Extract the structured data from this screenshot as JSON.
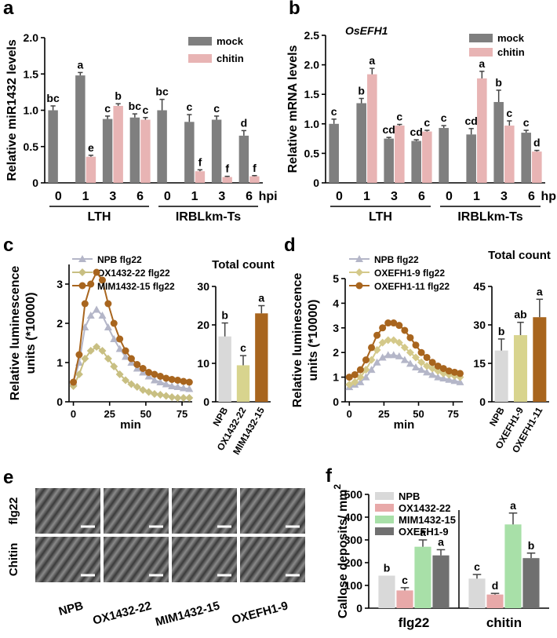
{
  "chart_data": [
    {
      "type": "bar",
      "letter": "a",
      "ylabel": "Relative miR1432 levels",
      "categories": [
        "0",
        "1",
        "3",
        "6",
        "0",
        "1",
        "3",
        "6"
      ],
      "groups": [
        "LTH",
        "IRBLkm-Ts"
      ],
      "xlabel": "hpi",
      "series": [
        {
          "name": "mock",
          "color": "#7f7f7f",
          "values": [
            1.0,
            1.48,
            0.88,
            0.9,
            1.0,
            0.84,
            0.87,
            0.65
          ],
          "errors": [
            0.06,
            0.04,
            0.04,
            0.05,
            0.15,
            0.1,
            0.05,
            0.07
          ],
          "labels": [
            "bc",
            "a",
            "c",
            "bc",
            "bc",
            "c",
            "c",
            "d"
          ]
        },
        {
          "name": "chitin",
          "color": "#e8b4b4",
          "values": [
            null,
            0.36,
            1.06,
            0.87,
            null,
            0.16,
            0.08,
            0.09
          ],
          "errors": [
            null,
            0.02,
            0.03,
            0.03,
            null,
            0.02,
            0.01,
            0.01
          ],
          "labels": [
            null,
            "e",
            "b",
            "c",
            null,
            "f",
            "f",
            "f"
          ]
        }
      ],
      "ylim": [
        0,
        2
      ],
      "yticks": [
        0,
        0.5,
        {
          "value": 1,
          "label": "1.0"
        },
        1.5,
        {
          "value": 2,
          "label": "2.0"
        }
      ]
    },
    {
      "type": "bar",
      "letter": "b",
      "title": "OsEFH1",
      "ylabel": "Relative mRNA levels",
      "categories": [
        "0",
        "1",
        "3",
        "6",
        "0",
        "1",
        "3",
        "6"
      ],
      "groups": [
        "LTH",
        "IRBLkm-Ts"
      ],
      "xlabel": "hpi",
      "series": [
        {
          "name": "mock",
          "color": "#7f7f7f",
          "values": [
            1.0,
            1.35,
            0.75,
            0.71,
            0.93,
            0.82,
            1.37,
            0.85
          ],
          "errors": [
            0.08,
            0.08,
            0.02,
            0.02,
            0.04,
            0.1,
            0.2,
            0.04
          ],
          "labels": [
            "c",
            "b",
            "cd",
            "cd",
            "c",
            "cd",
            "b",
            "c"
          ]
        },
        {
          "name": "chitin",
          "color": "#e8b4b4",
          "values": [
            null,
            1.84,
            0.97,
            0.87,
            null,
            1.77,
            0.97,
            0.53
          ],
          "errors": [
            null,
            0.1,
            0.02,
            0.02,
            null,
            0.12,
            0.08,
            0.02
          ],
          "labels": [
            null,
            "a",
            "c",
            "c",
            null,
            "a",
            "c",
            "d"
          ]
        }
      ],
      "ylim": [
        0,
        2.5
      ],
      "yticks": [
        0,
        0.5,
        {
          "value": 1,
          "label": "1.0"
        },
        1.5,
        {
          "value": 2,
          "label": "2.0"
        },
        2.5
      ]
    },
    {
      "type": "line",
      "letter": "c",
      "ylabel": [
        "Relative luminescence",
        "units (*10000)"
      ],
      "xlabel": "min",
      "x": [
        0,
        4,
        8,
        12,
        16,
        20,
        24,
        28,
        32,
        36,
        40,
        44,
        48,
        52,
        56,
        60,
        64,
        68,
        72,
        76,
        80
      ],
      "series": [
        {
          "name": "NPB flg22",
          "color": "#b4b6c8",
          "marker": "triangle",
          "values": [
            0.5,
            1.0,
            1.9,
            2.2,
            2.35,
            2.2,
            1.9,
            1.6,
            1.35,
            1.15,
            1.0,
            0.85,
            0.75,
            0.65,
            0.55,
            0.5,
            0.45,
            0.4,
            0.38,
            0.35,
            0.33
          ]
        },
        {
          "name": "OX1432-22 flg22",
          "color": "#c8bf82",
          "marker": "diamond",
          "values": [
            0.4,
            0.7,
            1.1,
            1.3,
            1.4,
            1.3,
            1.1,
            0.9,
            0.7,
            0.55,
            0.45,
            0.38,
            0.3,
            0.25,
            0.2,
            0.18,
            0.15,
            0.12,
            0.1,
            0.1,
            0.1
          ]
        },
        {
          "name": "MIM1432-15 flg22",
          "color": "#a8651e",
          "marker": "circle",
          "values": [
            0.5,
            1.2,
            2.5,
            3.0,
            3.3,
            3.1,
            2.5,
            2.0,
            1.6,
            1.3,
            1.1,
            0.95,
            0.85,
            0.75,
            0.7,
            0.65,
            0.6,
            0.57,
            0.55,
            0.52,
            0.5
          ]
        }
      ],
      "xlim": [
        -3,
        82
      ],
      "xticks": [
        0,
        25,
        50,
        75
      ],
      "ylim": [
        0,
        3.5
      ],
      "yticks": [
        0,
        1,
        2,
        3
      ]
    },
    {
      "type": "bar",
      "title": "Total count",
      "categories": [
        "NPB",
        "OX1432-22",
        "MIM1432-15"
      ],
      "values": [
        17,
        9.5,
        23
      ],
      "errors": [
        3.5,
        2.5,
        2
      ],
      "labels": [
        "b",
        "c",
        "a"
      ],
      "colors": [
        "#d9d9d9",
        "#d8d48e",
        "#a8651e"
      ],
      "ylim": [
        0,
        30
      ],
      "yticks": [
        0,
        10,
        20,
        30
      ]
    },
    {
      "type": "line",
      "letter": "d",
      "ylabel": [
        "Relative luminescence",
        "units (*10000)"
      ],
      "xlabel": "min",
      "x": [
        0,
        4,
        8,
        12,
        16,
        20,
        24,
        28,
        32,
        36,
        40,
        44,
        48,
        52,
        56,
        60,
        64,
        68,
        72,
        76,
        80
      ],
      "series": [
        {
          "name": "NPB flg22",
          "color": "#b4b6c8",
          "marker": "triangle",
          "values": [
            0.6,
            0.7,
            0.8,
            1.0,
            1.3,
            1.6,
            1.8,
            1.9,
            1.9,
            1.85,
            1.7,
            1.55,
            1.4,
            1.3,
            1.2,
            1.1,
            1.0,
            0.95,
            0.9,
            0.85,
            0.8
          ]
        },
        {
          "name": "OXEFH1-9 flg22",
          "color": "#d4c98a",
          "marker": "diamond",
          "values": [
            0.7,
            0.8,
            1.0,
            1.3,
            1.7,
            2.1,
            2.4,
            2.5,
            2.5,
            2.4,
            2.2,
            2.0,
            1.8,
            1.6,
            1.45,
            1.35,
            1.25,
            1.15,
            1.1,
            1.05,
            1.0
          ]
        },
        {
          "name": "OXEFH1-11 flg22",
          "color": "#a8651e",
          "marker": "circle",
          "values": [
            1.0,
            1.1,
            1.3,
            1.7,
            2.2,
            2.7,
            3.0,
            3.2,
            3.2,
            3.1,
            2.9,
            2.6,
            2.3,
            2.0,
            1.8,
            1.6,
            1.45,
            1.35,
            1.25,
            1.2,
            1.15
          ]
        }
      ],
      "xlim": [
        -3,
        82
      ],
      "xticks": [
        0,
        25,
        50,
        75
      ],
      "ylim": [
        0,
        5
      ],
      "yticks": [
        0,
        1,
        2,
        3,
        4,
        5
      ]
    },
    {
      "type": "bar",
      "title": "Total count",
      "categories": [
        "NPB",
        "OXEFH1-9",
        "OXEFH1-11"
      ],
      "values": [
        20,
        26,
        33
      ],
      "errors": [
        4.5,
        5,
        7
      ],
      "labels": [
        "b",
        "ab",
        "a"
      ],
      "colors": [
        "#d9d9d9",
        "#d8d48e",
        "#a8651e"
      ],
      "ylim": [
        0,
        45
      ],
      "yticks": [
        0,
        15,
        30,
        45
      ]
    },
    {
      "type": "bar",
      "letter": "f",
      "ylabel": "Callose deposits/ mm",
      "ylabel_sup": "2",
      "categories": [
        "flg22",
        "chitin"
      ],
      "series": [
        {
          "name": "NPB",
          "color": "#d9d9d9",
          "values": [
            143,
            130
          ],
          "errors": [
            0,
            18
          ],
          "labels": [
            "b",
            "c"
          ]
        },
        {
          "name": "OX1432-22",
          "color": "#e8a9a9",
          "values": [
            78,
            60
          ],
          "errors": [
            12,
            5
          ],
          "labels": [
            "c",
            "d"
          ]
        },
        {
          "name": "MIM1432-15",
          "color": "#a8e0a8",
          "values": [
            270,
            368
          ],
          "errors": [
            30,
            50
          ],
          "labels": [
            "a",
            "a"
          ]
        },
        {
          "name": "OXEFH1-9",
          "color": "#707070",
          "values": [
            232,
            220
          ],
          "errors": [
            25,
            22
          ],
          "labels": [
            "a",
            "b"
          ]
        }
      ],
      "ylim": [
        0,
        500
      ],
      "yticks": [
        0,
        100,
        200,
        300,
        400,
        500
      ]
    }
  ],
  "image_panel": {
    "letter": "e",
    "rows": [
      "flg22",
      "Chitin"
    ],
    "columns": [
      "NPB",
      "OX1432-22",
      "MIM1432-15",
      "OXEFH1-9"
    ]
  }
}
